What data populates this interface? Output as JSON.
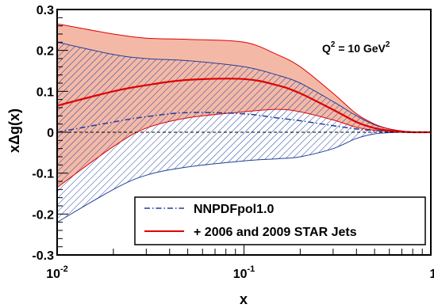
{
  "chart_data": {
    "type": "line",
    "xscale": "log",
    "xlim": [
      0.01,
      1
    ],
    "ylim": [
      -0.3,
      0.3
    ],
    "xlabel": "x",
    "ylabel": "xΔg(x)",
    "annotation": {
      "base": "Q",
      "sup1": "2",
      "mid": " = 10 GeV",
      "sup2": "2"
    },
    "x_ticks": [
      {
        "value": 0.01,
        "base": "10",
        "exp": "-2"
      },
      {
        "value": 0.1,
        "base": "10",
        "exp": "-1"
      },
      {
        "value": 1,
        "base": "1",
        "exp": ""
      }
    ],
    "y_ticks": [
      {
        "value": -0.3,
        "label": "-0.3"
      },
      {
        "value": -0.2,
        "label": "-0.2"
      },
      {
        "value": -0.1,
        "label": "-0.1"
      },
      {
        "value": 0,
        "label": "0"
      },
      {
        "value": 0.1,
        "label": "0.1"
      },
      {
        "value": 0.2,
        "label": "0.2"
      },
      {
        "value": 0.3,
        "label": "0.3"
      }
    ],
    "legend_position": "bottom-right",
    "series": [
      {
        "name": "NNPDFpol1.0",
        "color": "#1f3f9f",
        "style": "dash-dot",
        "band_fill": "hatched",
        "x": [
          0.01,
          0.02,
          0.03,
          0.05,
          0.1,
          0.15,
          0.2,
          0.3,
          0.4,
          0.5,
          0.6,
          0.7,
          0.8,
          0.9,
          1.0
        ],
        "central": [
          0.0,
          0.025,
          0.038,
          0.048,
          0.045,
          0.035,
          0.028,
          0.016,
          0.008,
          0.004,
          0.002,
          0.001,
          0.0,
          0.0,
          0.0
        ],
        "upper": [
          0.22,
          0.19,
          0.18,
          0.175,
          0.16,
          0.14,
          0.12,
          0.075,
          0.04,
          0.018,
          0.008,
          0.003,
          0.001,
          0.0,
          0.0
        ],
        "lower": [
          -0.22,
          -0.14,
          -0.105,
          -0.085,
          -0.07,
          -0.065,
          -0.06,
          -0.04,
          -0.015,
          -0.004,
          -0.001,
          0.0,
          0.0,
          0.0,
          0.0
        ]
      },
      {
        "name": "+ 2006 and 2009 STAR Jets",
        "color": "#e00000",
        "style": "solid",
        "band_fill": "#f4b9a6",
        "x": [
          0.01,
          0.02,
          0.03,
          0.05,
          0.1,
          0.15,
          0.2,
          0.3,
          0.4,
          0.5,
          0.6,
          0.7,
          0.8,
          0.9,
          1.0
        ],
        "central": [
          0.065,
          0.1,
          0.115,
          0.128,
          0.13,
          0.115,
          0.095,
          0.055,
          0.025,
          0.01,
          0.004,
          0.001,
          0.0,
          0.0,
          0.0
        ],
        "upper": [
          0.265,
          0.24,
          0.23,
          0.227,
          0.22,
          0.19,
          0.16,
          0.095,
          0.045,
          0.02,
          0.008,
          0.003,
          0.001,
          0.0,
          0.0
        ],
        "lower": [
          -0.135,
          -0.035,
          0.01,
          0.035,
          0.05,
          0.056,
          0.05,
          0.03,
          0.012,
          0.005,
          0.002,
          0.0,
          0.0,
          0.0,
          0.0
        ]
      }
    ]
  }
}
